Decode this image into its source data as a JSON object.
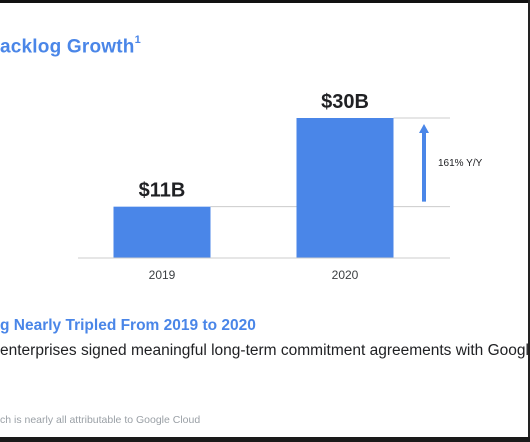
{
  "slide": {
    "title": "acklog Growth",
    "title_footnote_mark": "1",
    "subhead": "g Nearly Tripled From 2019 to 2020",
    "body": "enterprises signed meaningful long-term commitment agreements with Googl",
    "footnote": "ch is nearly all attributable to Google Cloud"
  },
  "colors": {
    "accent": "#4a86e8",
    "bar": "#4a86e8",
    "text": "#202124",
    "muted": "#9aa0a6",
    "gridline": "#cccccc"
  },
  "chart_data": {
    "type": "bar",
    "categories": [
      "2019",
      "2020"
    ],
    "values": [
      11,
      30
    ],
    "data_labels": [
      "$11B",
      "$30B"
    ],
    "unit": "$B",
    "ylim": [
      0,
      30
    ],
    "annotation": {
      "label": "161% Y/Y",
      "from_value": 11,
      "to_value": 30
    },
    "grid": false
  }
}
